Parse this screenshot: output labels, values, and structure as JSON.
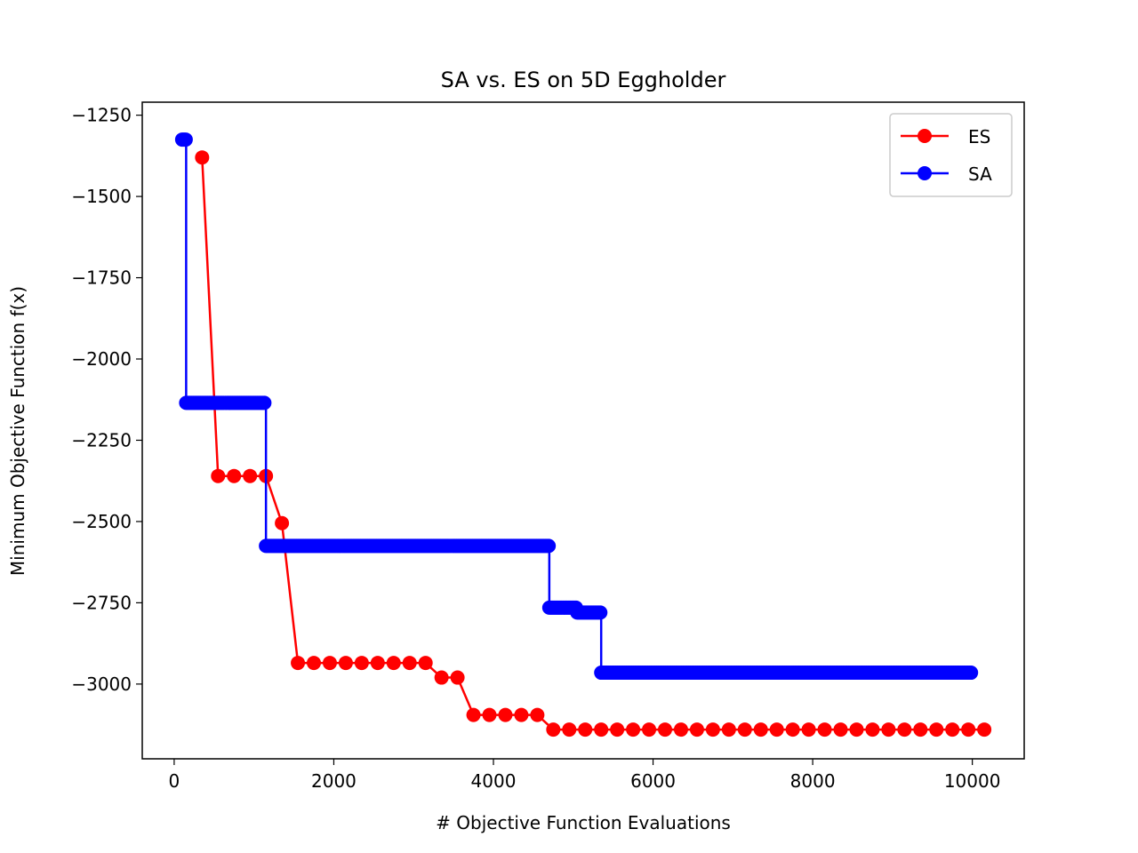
{
  "chart_data": {
    "type": "line",
    "title": "SA vs. ES on 5D Eggholder",
    "xlabel": "# Objective Function Evaluations",
    "ylabel": "Minimum Objective Function f(x)",
    "xlim": [
      -400,
      10650
    ],
    "ylim": [
      -3230,
      -1210
    ],
    "xticks": [
      0,
      2000,
      4000,
      6000,
      8000,
      10000
    ],
    "yticks": [
      -3000,
      -2750,
      -2500,
      -2250,
      -2000,
      -1750,
      -1500,
      -1250
    ],
    "grid": false,
    "legend_position": "top-right",
    "series": [
      {
        "name": "ES",
        "color": "#ff0000",
        "step": false,
        "marker": "circle",
        "x": [
          350,
          550,
          750,
          950,
          1150,
          1350,
          1550,
          1750,
          1950,
          2150,
          2350,
          2550,
          2750,
          2950,
          3150,
          3350,
          3550,
          3750,
          3950,
          4150,
          4350,
          4550,
          4750,
          4950,
          5150,
          5350,
          5550,
          5750,
          5950,
          6150,
          6350,
          6550,
          6750,
          6950,
          7150,
          7350,
          7550,
          7750,
          7950,
          8150,
          8350,
          8550,
          8750,
          8950,
          9150,
          9350,
          9550,
          9750,
          9950,
          10150
        ],
        "y": [
          -1380,
          -2360,
          -2360,
          -2360,
          -2360,
          -2505,
          -2935,
          -2935,
          -2935,
          -2935,
          -2935,
          -2935,
          -2935,
          -2935,
          -2935,
          -2980,
          -2980,
          -3095,
          -3095,
          -3095,
          -3095,
          -3095,
          -3140,
          -3140,
          -3140,
          -3140,
          -3140,
          -3140,
          -3140,
          -3140,
          -3140,
          -3140,
          -3140,
          -3140,
          -3140,
          -3140,
          -3140,
          -3140,
          -3140,
          -3140,
          -3140,
          -3140,
          -3140,
          -3140,
          -3140,
          -3140,
          -3140,
          -3140,
          -3140,
          -3140
        ]
      },
      {
        "name": "SA",
        "color": "#0000ff",
        "step": true,
        "marker": "circle",
        "segments": [
          {
            "x_start": 100,
            "x_end": 150,
            "y": -1325
          },
          {
            "x_start": 150,
            "x_end": 1150,
            "y": -2135
          },
          {
            "x_start": 1150,
            "x_end": 4700,
            "y": -2575
          },
          {
            "x_start": 4700,
            "x_end": 5050,
            "y": -2765
          },
          {
            "x_start": 5050,
            "x_end": 5350,
            "y": -2780
          },
          {
            "x_start": 5350,
            "x_end": 10000,
            "y": -2965
          }
        ]
      }
    ]
  }
}
